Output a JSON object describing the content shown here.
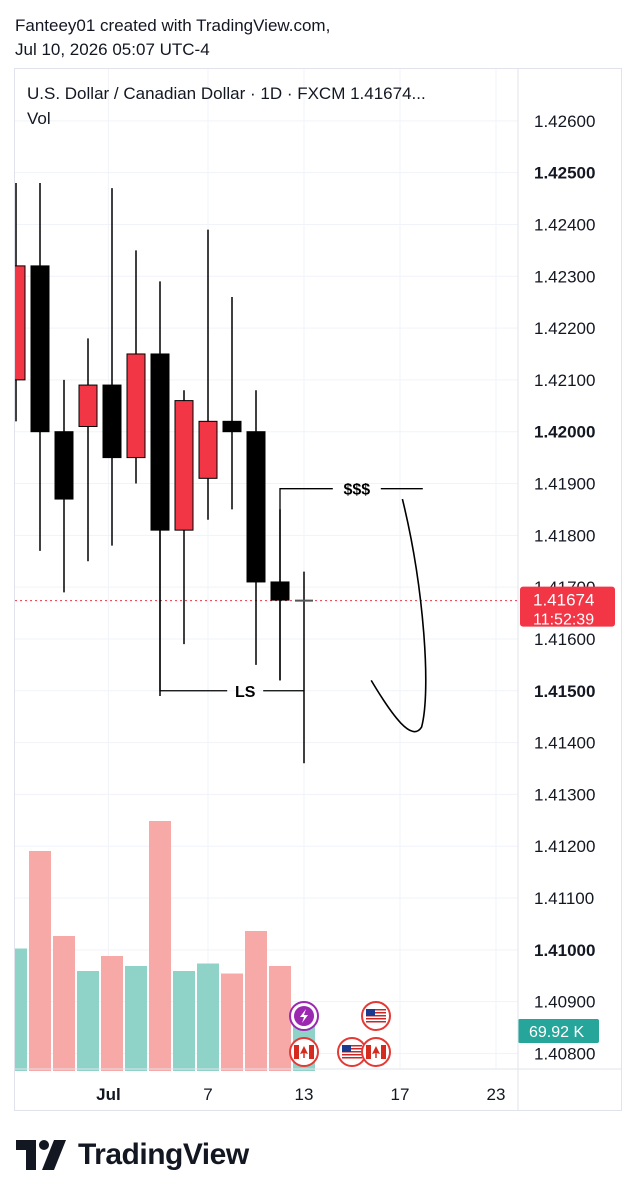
{
  "header": {
    "line1": "Fanteey01 created with TradingView.com,",
    "line2": "Jul 10, 2026 05:07 UTC-4"
  },
  "chart_data": {
    "type": "candlestick",
    "title": "U.S. Dollar / Canadian Dollar · 1D · FXCM  1.41674...",
    "volume_label": "Vol",
    "price_axis": {
      "range": [
        1.4077,
        1.427
      ],
      "ticks": [
        {
          "value": 1.426,
          "label": "1.42600",
          "bold": false
        },
        {
          "value": 1.425,
          "label": "1.42500",
          "bold": true
        },
        {
          "value": 1.424,
          "label": "1.42400",
          "bold": false
        },
        {
          "value": 1.423,
          "label": "1.42300",
          "bold": false
        },
        {
          "value": 1.422,
          "label": "1.42200",
          "bold": false
        },
        {
          "value": 1.421,
          "label": "1.42100",
          "bold": false
        },
        {
          "value": 1.42,
          "label": "1.42000",
          "bold": true
        },
        {
          "value": 1.419,
          "label": "1.41900",
          "bold": false
        },
        {
          "value": 1.418,
          "label": "1.41800",
          "bold": false
        },
        {
          "value": 1.417,
          "label": "1.41700",
          "bold": false
        },
        {
          "value": 1.416,
          "label": "1.41600",
          "bold": false
        },
        {
          "value": 1.415,
          "label": "1.41500",
          "bold": true
        },
        {
          "value": 1.414,
          "label": "1.41400",
          "bold": false
        },
        {
          "value": 1.413,
          "label": "1.41300",
          "bold": false
        },
        {
          "value": 1.412,
          "label": "1.41200",
          "bold": false
        },
        {
          "value": 1.411,
          "label": "1.41100",
          "bold": false
        },
        {
          "value": 1.41,
          "label": "1.41000",
          "bold": true
        },
        {
          "value": 1.409,
          "label": "1.40900",
          "bold": false
        },
        {
          "value": 1.408,
          "label": "1.40800",
          "bold": false
        }
      ]
    },
    "time_axis": {
      "labels": [
        {
          "day_index": 2.85,
          "label": "Jul",
          "bold": true
        },
        {
          "day_index": 7,
          "label": "7",
          "bold": false
        },
        {
          "day_index": 11,
          "label": "13",
          "bold": false
        },
        {
          "day_index": 15,
          "label": "17",
          "bold": false
        },
        {
          "day_index": 19,
          "label": "23",
          "bold": false
        }
      ]
    },
    "current_price": {
      "value": 1.41674,
      "label": "1.41674",
      "countdown": "11:52:39",
      "color": "#f23645"
    },
    "current_volume": {
      "label": "69.92 K",
      "color": "#26a69a"
    },
    "colors": {
      "bull": "#f23645",
      "bear": "#000000",
      "vol_up": "#f7a9a7",
      "vol_down": "#8fd3c8",
      "grid": "#f0f3fa"
    },
    "candles": [
      {
        "i": -1,
        "open": 1.421,
        "high": 1.4248,
        "low": 1.4202,
        "close": 1.4232,
        "dir": "up"
      },
      {
        "i": 0,
        "open": 1.4232,
        "high": 1.4248,
        "low": 1.4177,
        "close": 1.42,
        "dir": "down"
      },
      {
        "i": 1,
        "open": 1.42,
        "high": 1.421,
        "low": 1.4169,
        "close": 1.4187,
        "dir": "down"
      },
      {
        "i": 2,
        "open": 1.4201,
        "high": 1.4218,
        "low": 1.4175,
        "close": 1.4209,
        "dir": "up"
      },
      {
        "i": 3,
        "open": 1.4209,
        "high": 1.4247,
        "low": 1.4178,
        "close": 1.4195,
        "dir": "down"
      },
      {
        "i": 4,
        "open": 1.4195,
        "high": 1.4235,
        "low": 1.419,
        "close": 1.4215,
        "dir": "up"
      },
      {
        "i": 5,
        "open": 1.4215,
        "high": 1.4229,
        "low": 1.4149,
        "close": 1.4181,
        "dir": "down"
      },
      {
        "i": 6,
        "open": 1.4181,
        "high": 1.4208,
        "low": 1.4159,
        "close": 1.4206,
        "dir": "up"
      },
      {
        "i": 7,
        "open": 1.4191,
        "high": 1.4239,
        "low": 1.4183,
        "close": 1.4202,
        "dir": "up"
      },
      {
        "i": 8,
        "open": 1.4202,
        "high": 1.4226,
        "low": 1.4185,
        "close": 1.42,
        "dir": "down"
      },
      {
        "i": 9,
        "open": 1.42,
        "high": 1.4208,
        "low": 1.4155,
        "close": 1.4171,
        "dir": "down"
      },
      {
        "i": 10,
        "open": 1.4171,
        "high": 1.4185,
        "low": 1.4152,
        "close": 1.41675,
        "dir": "down"
      },
      {
        "i": 11,
        "open": 1.41674,
        "high": 1.4173,
        "low": 1.4136,
        "close": 1.41674,
        "dir": "flat"
      }
    ],
    "volume": {
      "scale_max": 1.0,
      "bars": [
        {
          "i": -1,
          "value": 0.49,
          "dir": "down"
        },
        {
          "i": 0,
          "value": 0.88,
          "dir": "up"
        },
        {
          "i": 1,
          "value": 0.54,
          "dir": "up"
        },
        {
          "i": 2,
          "value": 0.4,
          "dir": "down"
        },
        {
          "i": 3,
          "value": 0.46,
          "dir": "up"
        },
        {
          "i": 4,
          "value": 0.42,
          "dir": "down"
        },
        {
          "i": 5,
          "value": 1.0,
          "dir": "up"
        },
        {
          "i": 6,
          "value": 0.4,
          "dir": "down"
        },
        {
          "i": 7,
          "value": 0.43,
          "dir": "down"
        },
        {
          "i": 8,
          "value": 0.39,
          "dir": "up"
        },
        {
          "i": 9,
          "value": 0.56,
          "dir": "up"
        },
        {
          "i": 10,
          "value": 0.42,
          "dir": "up"
        },
        {
          "i": 11,
          "value": 0.19,
          "dir": "down"
        }
      ]
    },
    "annotations": [
      {
        "text": "$$$",
        "price": 1.4189,
        "from_day": 10,
        "to_day": 15
      },
      {
        "text": "LS",
        "price": 1.415,
        "from_day": 5,
        "to_day": 11
      }
    ],
    "event_icons": [
      {
        "name": "lightning-icon",
        "day": 11,
        "row": 0,
        "color": "#9c27b0"
      },
      {
        "name": "canada-flag-icon",
        "day": 11,
        "row": 1
      },
      {
        "name": "us-flag-icon",
        "day": 13,
        "row": 1
      },
      {
        "name": "canada-flag-icon",
        "day": 14,
        "row": 1
      },
      {
        "name": "us-flag-icon",
        "day": 14,
        "row": 0
      }
    ]
  },
  "footer": {
    "brand": "TradingView",
    "logo_icon": "tradingview-logo-icon"
  }
}
